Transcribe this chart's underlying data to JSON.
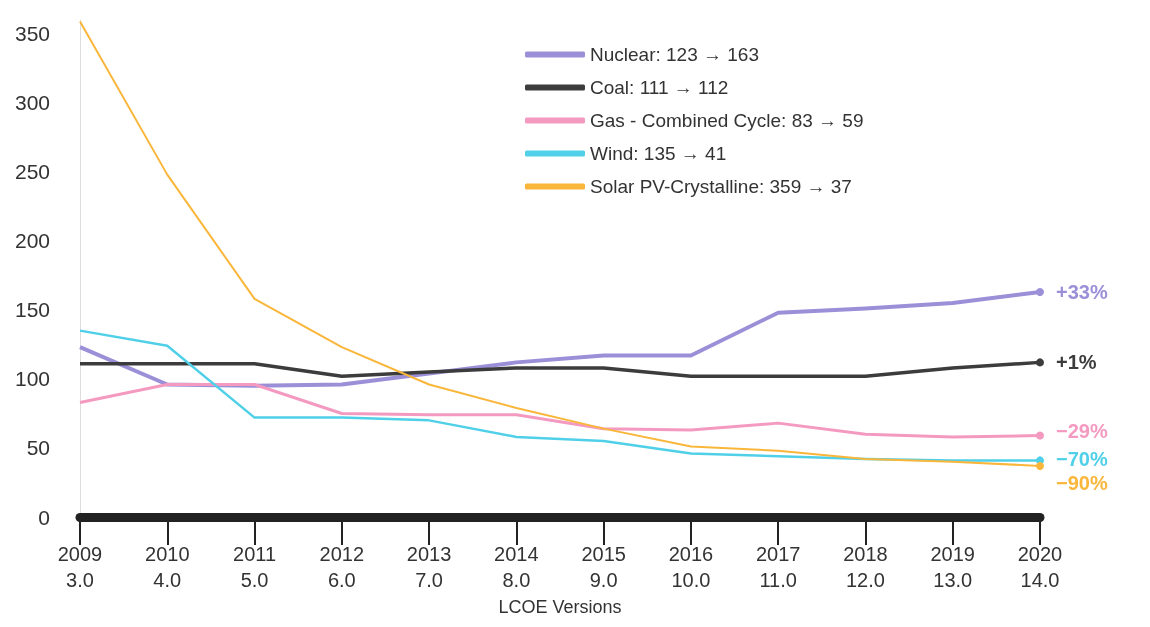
{
  "chart_data": {
    "type": "line",
    "xlabel": "LCOE Versions",
    "categories": [
      "2009\n3.0",
      "2010\n4.0",
      "2011\n5.0",
      "2012\n6.0",
      "2013\n7.0",
      "2014\n8.0",
      "2015\n9.0",
      "2016\n10.0",
      "2017\n11.0",
      "2018\n12.0",
      "2019\n13.0",
      "2020\n14.0"
    ],
    "series": [
      {
        "name": "Nuclear: 123 → 163",
        "color": "#9b8fd8",
        "values": [
          123,
          96,
          95,
          96,
          104,
          112,
          117,
          117,
          148,
          151,
          155,
          163
        ]
      },
      {
        "name": "Coal: 111 → 112",
        "color": "#3c3c3c",
        "values": [
          111,
          111,
          111,
          102,
          105,
          108,
          108,
          102,
          102,
          102,
          108,
          112
        ]
      },
      {
        "name": "Gas - Combined Cycle: 83 → 59",
        "color": "#f49ac1",
        "values": [
          83,
          96,
          96,
          75,
          74,
          74,
          64,
          63,
          68,
          60,
          58,
          59
        ]
      },
      {
        "name": "Wind: 135 → 41",
        "color": "#4fd0e8",
        "values": [
          135,
          124,
          72,
          72,
          70,
          58,
          55,
          46,
          44,
          42,
          41,
          41
        ]
      },
      {
        "name": "Solar PV-Crystalline: 359 → 37",
        "color": "#f9b63a",
        "values": [
          359,
          248,
          158,
          123,
          96,
          79,
          64,
          51,
          48,
          42,
          40,
          37
        ]
      }
    ],
    "ylim": [
      0,
      360
    ],
    "yticks": [
      0,
      50,
      100,
      150,
      200,
      250,
      300,
      350
    ],
    "grid": false,
    "legend": "top right",
    "annotations": [
      {
        "text": "+33%",
        "x": "2020\n14.0",
        "y": 163
      },
      {
        "text": "+1%",
        "x": "2020\n14.0",
        "y": 112
      },
      {
        "text": "−29%",
        "x": "2020\n14.0",
        "y": 62
      },
      {
        "text": "−70%",
        "x": "2020\n14.0",
        "y": 42
      },
      {
        "text": "−90%",
        "x": "2020\n14.0",
        "y": 37
      }
    ]
  }
}
